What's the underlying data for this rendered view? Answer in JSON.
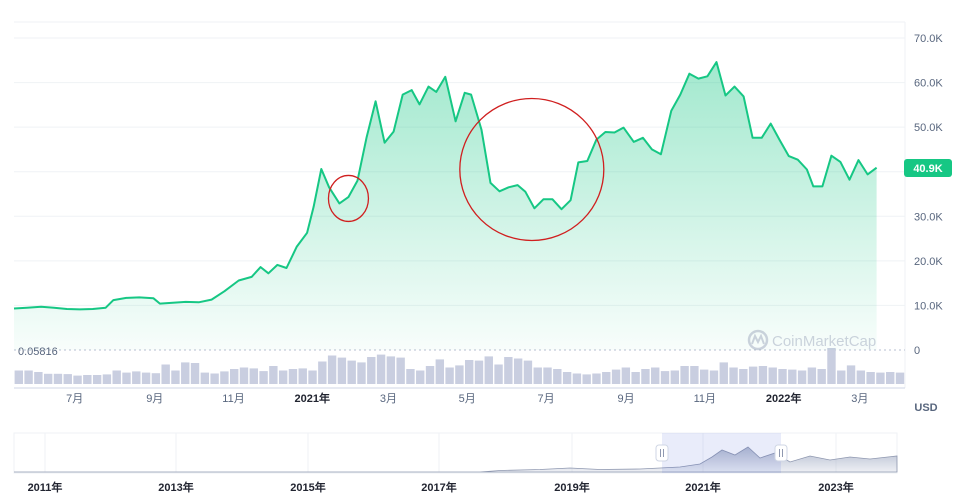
{
  "chart_data": {
    "type": "area",
    "title": "",
    "currency": "USD",
    "current_price_label": "40.9K",
    "current_price": 40.9,
    "baseline_label": "0.05816",
    "watermark": "CoinMarketCap",
    "y_axis": {
      "unit": "USD",
      "ylim": [
        0,
        70
      ],
      "ticks": [
        "0",
        "10.0K",
        "20.0K",
        "30.0K",
        "40.0K",
        "50.0K",
        "60.0K",
        "70.0K"
      ],
      "tick_values": [
        0,
        10,
        20,
        30,
        40,
        50,
        60,
        70
      ],
      "position": "right",
      "grid": true
    },
    "x_axis": {
      "range": [
        "2020-05-15",
        "2022-04-05"
      ],
      "ticks": [
        {
          "label": "7月",
          "date": "2020-07-01",
          "bold": false
        },
        {
          "label": "9月",
          "date": "2020-09-01",
          "bold": false
        },
        {
          "label": "11月",
          "date": "2020-11-01",
          "bold": false
        },
        {
          "label": "2021年",
          "date": "2021-01-01",
          "bold": true
        },
        {
          "label": "3月",
          "date": "2021-03-01",
          "bold": false
        },
        {
          "label": "5月",
          "date": "2021-05-01",
          "bold": false
        },
        {
          "label": "7月",
          "date": "2021-07-01",
          "bold": false
        },
        {
          "label": "9月",
          "date": "2021-09-01",
          "bold": false
        },
        {
          "label": "11月",
          "date": "2021-11-01",
          "bold": false
        },
        {
          "label": "2022年",
          "date": "2022-01-01",
          "bold": true
        },
        {
          "label": "3月",
          "date": "2022-03-01",
          "bold": false
        }
      ]
    },
    "series": [
      {
        "values": [
          [
            "2020-05-15",
            9.3
          ],
          [
            "2020-05-25",
            9.5
          ],
          [
            "2020-06-05",
            9.7
          ],
          [
            "2020-06-15",
            9.5
          ],
          [
            "2020-06-25",
            9.2
          ],
          [
            "2020-07-05",
            9.1
          ],
          [
            "2020-07-15",
            9.2
          ],
          [
            "2020-07-25",
            9.5
          ],
          [
            "2020-07-31",
            11.2
          ],
          [
            "2020-08-10",
            11.7
          ],
          [
            "2020-08-20",
            11.8
          ],
          [
            "2020-08-31",
            11.6
          ],
          [
            "2020-09-05",
            10.4
          ],
          [
            "2020-09-15",
            10.6
          ],
          [
            "2020-09-25",
            10.8
          ],
          [
            "2020-10-05",
            10.7
          ],
          [
            "2020-10-15",
            11.3
          ],
          [
            "2020-10-25",
            13.2
          ],
          [
            "2020-11-05",
            15.6
          ],
          [
            "2020-11-15",
            16.4
          ],
          [
            "2020-11-22",
            18.6
          ],
          [
            "2020-11-28",
            17.2
          ],
          [
            "2020-12-05",
            19.1
          ],
          [
            "2020-12-12",
            18.4
          ],
          [
            "2020-12-20",
            23.2
          ],
          [
            "2020-12-28",
            26.3
          ],
          [
            "2021-01-02",
            32.1
          ],
          [
            "2021-01-08",
            40.6
          ],
          [
            "2021-01-14",
            36.5
          ],
          [
            "2021-01-22",
            32.9
          ],
          [
            "2021-01-29",
            34.3
          ],
          [
            "2021-02-05",
            38.0
          ],
          [
            "2021-02-12",
            47.6
          ],
          [
            "2021-02-19",
            55.8
          ],
          [
            "2021-02-26",
            46.5
          ],
          [
            "2021-03-05",
            49.0
          ],
          [
            "2021-03-12",
            57.3
          ],
          [
            "2021-03-19",
            58.3
          ],
          [
            "2021-03-25",
            55.1
          ],
          [
            "2021-04-01",
            59.1
          ],
          [
            "2021-04-07",
            57.9
          ],
          [
            "2021-04-14",
            61.3
          ],
          [
            "2021-04-22",
            51.3
          ],
          [
            "2021-04-29",
            57.7
          ],
          [
            "2021-05-04",
            57.3
          ],
          [
            "2021-05-12",
            49.4
          ],
          [
            "2021-05-19",
            37.5
          ],
          [
            "2021-05-26",
            35.6
          ],
          [
            "2021-06-02",
            36.5
          ],
          [
            "2021-06-09",
            37.0
          ],
          [
            "2021-06-15",
            35.5
          ],
          [
            "2021-06-22",
            31.8
          ],
          [
            "2021-06-29",
            33.8
          ],
          [
            "2021-07-06",
            33.8
          ],
          [
            "2021-07-13",
            31.6
          ],
          [
            "2021-07-20",
            33.6
          ],
          [
            "2021-07-26",
            42.1
          ],
          [
            "2021-08-02",
            42.4
          ],
          [
            "2021-08-09",
            47.2
          ],
          [
            "2021-08-16",
            48.9
          ],
          [
            "2021-08-23",
            48.8
          ],
          [
            "2021-08-30",
            49.9
          ],
          [
            "2021-09-07",
            46.7
          ],
          [
            "2021-09-14",
            47.6
          ],
          [
            "2021-09-21",
            45.0
          ],
          [
            "2021-09-28",
            43.9
          ],
          [
            "2021-10-06",
            53.7
          ],
          [
            "2021-10-13",
            57.3
          ],
          [
            "2021-10-20",
            62.0
          ],
          [
            "2021-10-27",
            60.9
          ],
          [
            "2021-11-03",
            61.4
          ],
          [
            "2021-11-10",
            64.6
          ],
          [
            "2021-11-17",
            57.1
          ],
          [
            "2021-11-24",
            59.1
          ],
          [
            "2021-12-01",
            56.9
          ],
          [
            "2021-12-08",
            47.6
          ],
          [
            "2021-12-15",
            47.6
          ],
          [
            "2021-12-22",
            50.8
          ],
          [
            "2021-12-29",
            47.1
          ],
          [
            "2022-01-05",
            43.5
          ],
          [
            "2022-01-12",
            42.7
          ],
          [
            "2022-01-19",
            40.5
          ],
          [
            "2022-01-24",
            36.7
          ],
          [
            "2022-01-31",
            36.7
          ],
          [
            "2022-02-07",
            43.6
          ],
          [
            "2022-02-14",
            42.2
          ],
          [
            "2022-02-21",
            38.2
          ],
          [
            "2022-02-28",
            42.6
          ],
          [
            "2022-03-07",
            39.4
          ],
          [
            "2022-03-14",
            40.9
          ]
        ]
      }
    ],
    "volume": [
      0.45,
      0.45,
      0.4,
      0.34,
      0.34,
      0.33,
      0.28,
      0.3,
      0.3,
      0.32,
      0.45,
      0.38,
      0.42,
      0.38,
      0.36,
      0.65,
      0.45,
      0.72,
      0.7,
      0.38,
      0.35,
      0.42,
      0.5,
      0.55,
      0.52,
      0.43,
      0.6,
      0.45,
      0.5,
      0.52,
      0.45,
      0.75,
      0.95,
      0.88,
      0.78,
      0.72,
      0.9,
      0.98,
      0.92,
      0.88,
      0.5,
      0.45,
      0.6,
      0.82,
      0.55,
      0.62,
      0.8,
      0.78,
      0.92,
      0.65,
      0.9,
      0.85,
      0.78,
      0.55,
      0.55,
      0.5,
      0.4,
      0.35,
      0.32,
      0.35,
      0.4,
      0.48,
      0.55,
      0.4,
      0.5,
      0.55,
      0.43,
      0.45,
      0.6,
      0.6,
      0.48,
      0.45,
      0.72,
      0.55,
      0.5,
      0.58,
      0.6,
      0.55,
      0.5,
      0.48,
      0.45,
      0.55,
      0.5,
      1.2,
      0.45,
      0.62,
      0.45,
      0.4,
      0.38,
      0.4,
      0.38
    ],
    "annotations": [
      {
        "type": "circle",
        "color": "#d01f1f",
        "around": [
          "2021-01-29",
          34.0
        ]
      },
      {
        "type": "circle",
        "color": "#d01f1f",
        "around": [
          "2021-06-20",
          40.5
        ]
      }
    ],
    "navigator": {
      "ticks": [
        "2011年",
        "2013年",
        "2015年",
        "2017年",
        "2019年",
        "2021年",
        "2023年"
      ],
      "selection": [
        "2020-05-15",
        "2022-04-05"
      ],
      "handle_icon": "pause-handle-icon"
    },
    "colors": {
      "line": "#16c784",
      "fill_top": "#aeeacb",
      "fill_bottom": "#ffffff",
      "volume": "#c9cee0",
      "price_tag": "#16c784",
      "circle": "#d01f1f"
    }
  }
}
